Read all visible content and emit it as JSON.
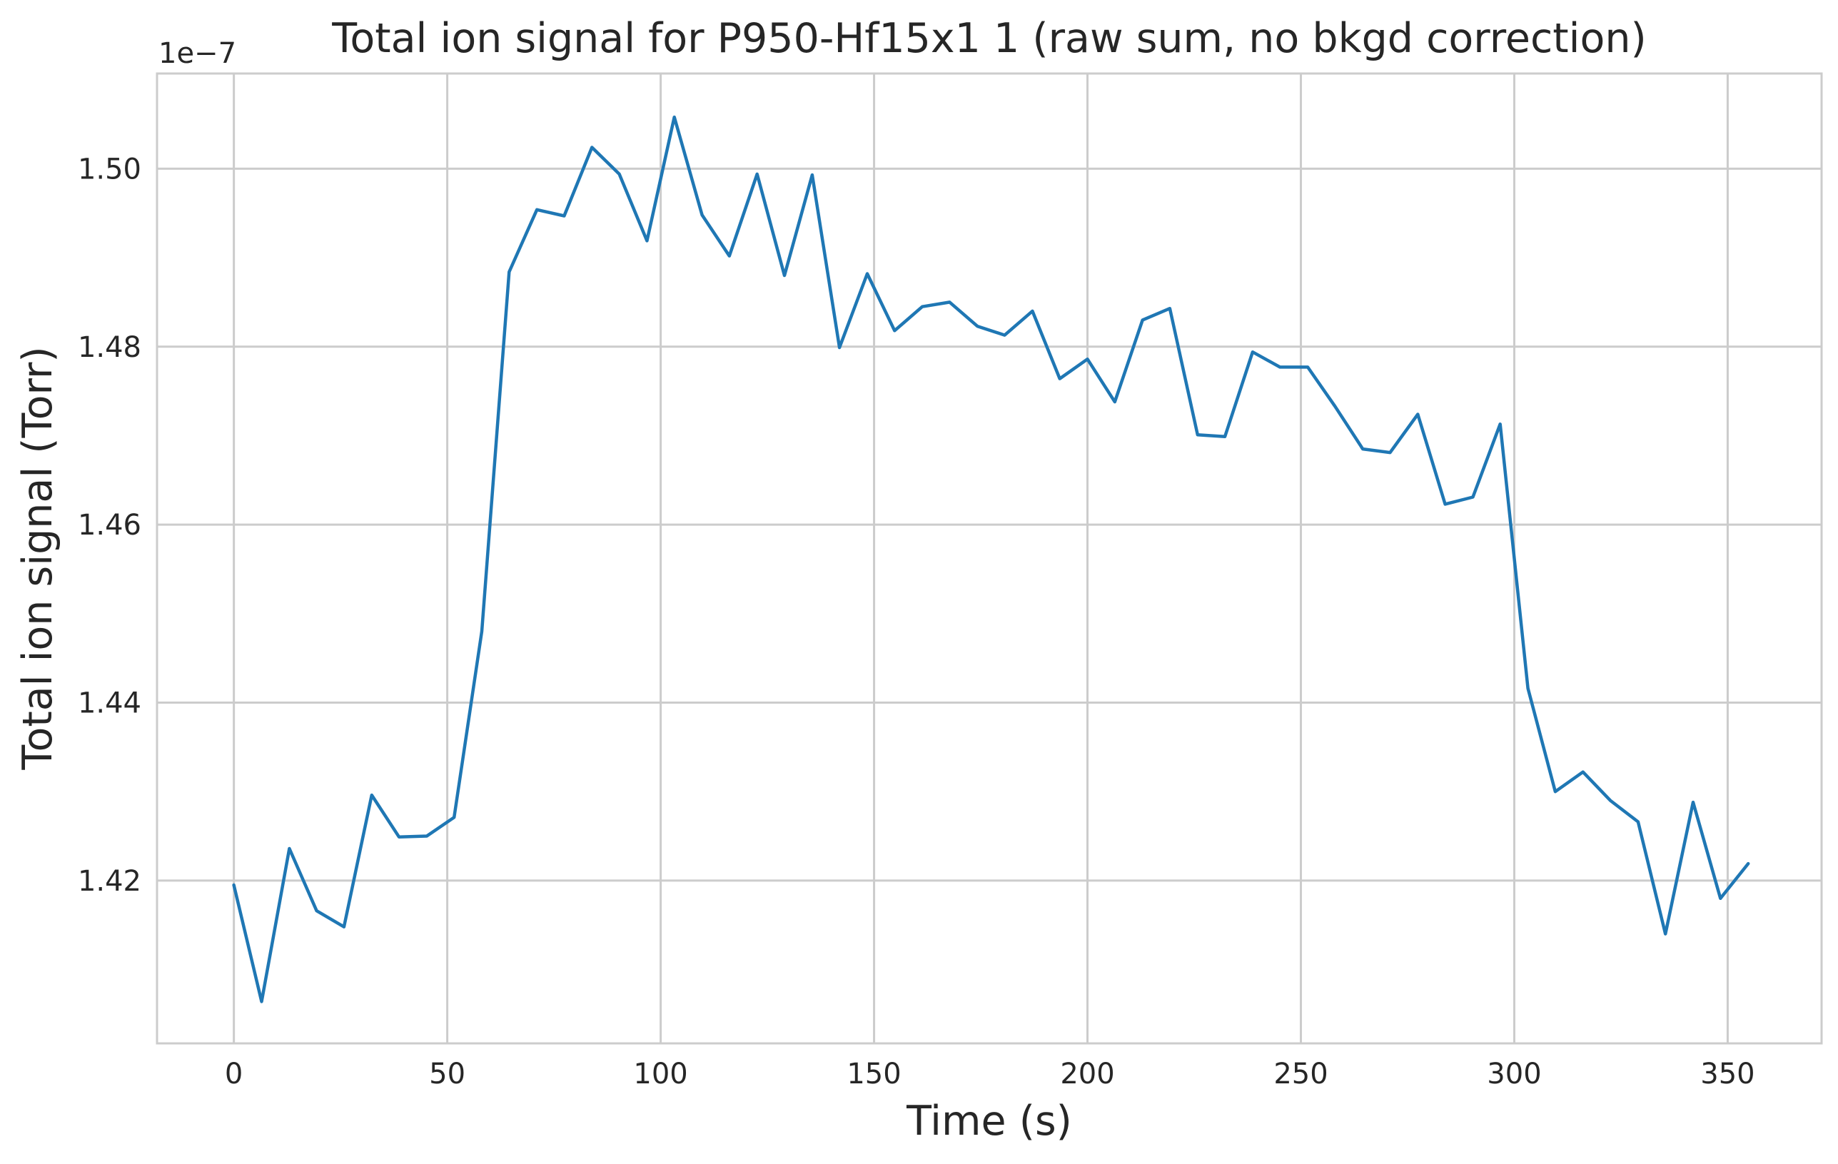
{
  "chart_data": {
    "type": "line",
    "title": "Total ion signal for P950-Hf15x1 1 (raw sum, no bkgd correction)",
    "xlabel": "Time (s)",
    "ylabel": "Total ion signal (Torr)",
    "y_offset_text": "1e−7",
    "xlim": [
      -18,
      372
    ],
    "ylim": [
      1.4017,
      1.5107
    ],
    "grid": true,
    "legend": "none",
    "x_ticks": [
      0,
      50,
      100,
      150,
      200,
      250,
      300,
      350
    ],
    "x_tick_labels": [
      "0",
      "50",
      "100",
      "150",
      "200",
      "250",
      "300",
      "350"
    ],
    "y_ticks": [
      1.42,
      1.44,
      1.46,
      1.48,
      1.5
    ],
    "y_tick_labels": [
      "1.42",
      "1.44",
      "1.46",
      "1.48",
      "1.50"
    ],
    "line_color": "#1f77b4",
    "series": [
      {
        "x": [
          0,
          6.5,
          13,
          19.4,
          25.8,
          32.3,
          38.7,
          45.2,
          51.6,
          58.1,
          64.5,
          71,
          77.4,
          83.9,
          90.3,
          96.8,
          103.2,
          109.7,
          116.1,
          122.6,
          129,
          135.5,
          141.9,
          148.4,
          154.8,
          161.3,
          167.7,
          174.2,
          180.6,
          187.1,
          193.5,
          200,
          206.4,
          212.9,
          219.3,
          225.8,
          232.2,
          238.7,
          245.1,
          251.6,
          258,
          264.5,
          270.9,
          277.4,
          283.8,
          290.3,
          296.7,
          303.2,
          309.6,
          316.1,
          322.5,
          329,
          335.4,
          341.9,
          348.3,
          354.8
        ],
        "y": [
          1.4195,
          1.4064,
          1.4236,
          1.4166,
          1.4148,
          1.4296,
          1.4249,
          1.425,
          1.4271,
          1.448,
          1.4884,
          1.4954,
          1.4947,
          1.5024,
          1.4994,
          1.4919,
          1.5058,
          1.4948,
          1.4902,
          1.4994,
          1.488,
          1.4993,
          1.4799,
          1.4882,
          1.4818,
          1.4845,
          1.485,
          1.4823,
          1.4813,
          1.484,
          1.4764,
          1.4786,
          1.4738,
          1.483,
          1.4843,
          1.4701,
          1.4699,
          1.4794,
          1.4777,
          1.4777,
          1.4733,
          1.4685,
          1.4681,
          1.4724,
          1.4623,
          1.4631,
          1.4713,
          1.4416,
          1.43,
          1.4322,
          1.429,
          1.4266,
          1.414,
          1.4288,
          1.418,
          1.4219
        ]
      }
    ]
  }
}
